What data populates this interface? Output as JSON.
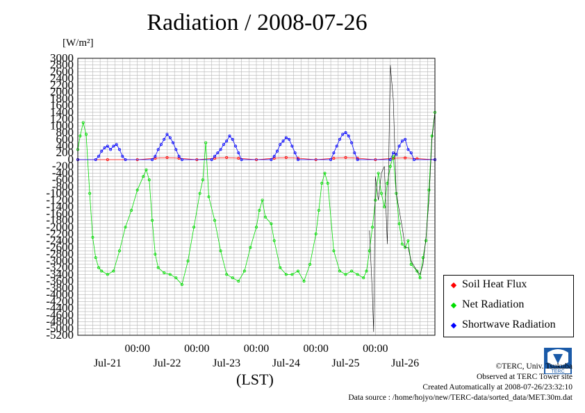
{
  "title": "Radiation / 2008-07-26",
  "ylabel_unit": "[W/m²]",
  "xlabel": "(LST)",
  "legend": {
    "items": [
      {
        "label": "Soil Heat Flux",
        "color": "#ff0000"
      },
      {
        "label": "Net Radiation",
        "color": "#00dd00"
      },
      {
        "label": "Shortwave Radiation",
        "color": "#0000ff"
      }
    ]
  },
  "credits": {
    "copyright": "©TERC, Univ. Tsukuba",
    "observed": "Observed at TERC Tower site",
    "created": "Created Automatically at 2008-07-26/23:32:10",
    "source": "Data source : /home/hojyo/new/TERC-data/sorted_data/MET.30m.dat"
  },
  "chart_data": {
    "type": "line",
    "x_unit": "days from 2008-07-20 18:00 LST",
    "xlim": [
      0,
      6
    ],
    "ylim": [
      -5200,
      3000
    ],
    "yticks": [
      3000,
      2800,
      2600,
      2400,
      2200,
      2000,
      1800,
      1600,
      1400,
      1200,
      1000,
      800,
      600,
      400,
      200,
      0,
      -200,
      -400,
      -600,
      -800,
      -1000,
      -1200,
      -1400,
      -1600,
      -1800,
      -2000,
      -2200,
      -2400,
      -2600,
      -2800,
      -3000,
      -3200,
      -3400,
      -3600,
      -3800,
      -4000,
      -4200,
      -4400,
      -4600,
      -4800,
      -5000,
      -5200
    ],
    "xticks": [
      {
        "x": 1.0,
        "time": "00:00",
        "date": "Jul-21"
      },
      {
        "x": 2.0,
        "time": "00:00",
        "date": "Jul-22"
      },
      {
        "x": 3.0,
        "time": "00:00",
        "date": "Jul-23"
      },
      {
        "x": 4.0,
        "time": "00:00",
        "date": "Jul-24"
      },
      {
        "x": 5.0,
        "time": "00:00",
        "date": "Jul-25"
      },
      {
        "x": 6.0,
        "time": "",
        "date": "Jul-26"
      }
    ],
    "grid": true,
    "series": [
      {
        "name": "Soil Heat Flux",
        "color": "#ff0000",
        "points": [
          [
            0,
            0
          ],
          [
            0.5,
            0
          ],
          [
            1.0,
            0
          ],
          [
            1.3,
            40
          ],
          [
            1.5,
            60
          ],
          [
            1.7,
            40
          ],
          [
            2.0,
            0
          ],
          [
            2.3,
            40
          ],
          [
            2.5,
            60
          ],
          [
            2.7,
            40
          ],
          [
            3.0,
            0
          ],
          [
            3.3,
            40
          ],
          [
            3.5,
            60
          ],
          [
            3.7,
            40
          ],
          [
            4.0,
            0
          ],
          [
            4.3,
            40
          ],
          [
            4.5,
            60
          ],
          [
            4.7,
            40
          ],
          [
            5.0,
            0
          ],
          [
            5.3,
            40
          ],
          [
            5.5,
            50
          ],
          [
            5.7,
            30
          ],
          [
            6.0,
            0
          ]
        ]
      },
      {
        "name": "Net Radiation",
        "color": "#00dd00",
        "points": [
          [
            0,
            300
          ],
          [
            0.04,
            700
          ],
          [
            0.09,
            1100
          ],
          [
            0.14,
            750
          ],
          [
            0.2,
            -1000
          ],
          [
            0.25,
            -2300
          ],
          [
            0.3,
            -2900
          ],
          [
            0.35,
            -3200
          ],
          [
            0.4,
            -3300
          ],
          [
            0.5,
            -3400
          ],
          [
            0.6,
            -3300
          ],
          [
            0.7,
            -2700
          ],
          [
            0.8,
            -2000
          ],
          [
            0.9,
            -1500
          ],
          [
            1.0,
            -900
          ],
          [
            1.1,
            -500
          ],
          [
            1.15,
            -300
          ],
          [
            1.2,
            -600
          ],
          [
            1.25,
            -1800
          ],
          [
            1.3,
            -2800
          ],
          [
            1.35,
            -3200
          ],
          [
            1.45,
            -3350
          ],
          [
            1.55,
            -3400
          ],
          [
            1.65,
            -3500
          ],
          [
            1.75,
            -3700
          ],
          [
            1.85,
            -3000
          ],
          [
            1.95,
            -2000
          ],
          [
            2.05,
            -1000
          ],
          [
            2.1,
            -600
          ],
          [
            2.15,
            500
          ],
          [
            2.2,
            -1100
          ],
          [
            2.3,
            -1800
          ],
          [
            2.4,
            -2700
          ],
          [
            2.5,
            -3400
          ],
          [
            2.6,
            -3500
          ],
          [
            2.7,
            -3600
          ],
          [
            2.8,
            -3300
          ],
          [
            2.9,
            -2600
          ],
          [
            3.0,
            -2000
          ],
          [
            3.05,
            -1500
          ],
          [
            3.1,
            -1200
          ],
          [
            3.15,
            -1700
          ],
          [
            3.25,
            -1900
          ],
          [
            3.3,
            -2400
          ],
          [
            3.4,
            -3200
          ],
          [
            3.5,
            -3400
          ],
          [
            3.6,
            -3400
          ],
          [
            3.7,
            -3300
          ],
          [
            3.8,
            -3600
          ],
          [
            3.9,
            -3100
          ],
          [
            4.0,
            -2200
          ],
          [
            4.05,
            -1500
          ],
          [
            4.1,
            -700
          ],
          [
            4.15,
            -400
          ],
          [
            4.2,
            -700
          ],
          [
            4.3,
            -2700
          ],
          [
            4.4,
            -3300
          ],
          [
            4.5,
            -3400
          ],
          [
            4.6,
            -3300
          ],
          [
            4.7,
            -3400
          ],
          [
            4.8,
            -3500
          ],
          [
            4.85,
            -3300
          ],
          [
            4.9,
            -2700
          ],
          [
            4.95,
            -2000
          ],
          [
            5.0,
            -1200
          ],
          [
            5.05,
            -400
          ],
          [
            5.1,
            -1000
          ],
          [
            5.15,
            -1400
          ],
          [
            5.2,
            -700
          ],
          [
            5.25,
            -200
          ],
          [
            5.3,
            100
          ],
          [
            5.35,
            -1000
          ],
          [
            5.4,
            -1900
          ],
          [
            5.45,
            -2500
          ],
          [
            5.5,
            -2600
          ],
          [
            5.55,
            -2400
          ],
          [
            5.6,
            -3100
          ],
          [
            5.7,
            -3300
          ],
          [
            5.75,
            -3500
          ],
          [
            5.8,
            -2900
          ],
          [
            5.85,
            -2400
          ],
          [
            5.9,
            -900
          ],
          [
            5.95,
            700
          ],
          [
            6.0,
            1400
          ]
        ]
      },
      {
        "name": "Shortwave Radiation",
        "color": "#0000ff",
        "points": [
          [
            0,
            0
          ],
          [
            0.3,
            0
          ],
          [
            0.35,
            100
          ],
          [
            0.4,
            250
          ],
          [
            0.45,
            350
          ],
          [
            0.5,
            400
          ],
          [
            0.55,
            300
          ],
          [
            0.6,
            400
          ],
          [
            0.65,
            450
          ],
          [
            0.7,
            300
          ],
          [
            0.75,
            100
          ],
          [
            0.8,
            0
          ],
          [
            1.25,
            0
          ],
          [
            1.3,
            100
          ],
          [
            1.35,
            300
          ],
          [
            1.4,
            450
          ],
          [
            1.45,
            600
          ],
          [
            1.5,
            750
          ],
          [
            1.55,
            650
          ],
          [
            1.6,
            500
          ],
          [
            1.65,
            300
          ],
          [
            1.7,
            100
          ],
          [
            1.75,
            0
          ],
          [
            2.25,
            0
          ],
          [
            2.3,
            100
          ],
          [
            2.35,
            200
          ],
          [
            2.4,
            300
          ],
          [
            2.45,
            450
          ],
          [
            2.5,
            550
          ],
          [
            2.55,
            700
          ],
          [
            2.6,
            600
          ],
          [
            2.65,
            400
          ],
          [
            2.7,
            200
          ],
          [
            2.75,
            0
          ],
          [
            3.25,
            0
          ],
          [
            3.3,
            100
          ],
          [
            3.35,
            250
          ],
          [
            3.4,
            450
          ],
          [
            3.45,
            550
          ],
          [
            3.5,
            650
          ],
          [
            3.55,
            600
          ],
          [
            3.6,
            400
          ],
          [
            3.65,
            200
          ],
          [
            3.7,
            0
          ],
          [
            4.25,
            0
          ],
          [
            4.3,
            200
          ],
          [
            4.35,
            400
          ],
          [
            4.4,
            600
          ],
          [
            4.45,
            750
          ],
          [
            4.5,
            800
          ],
          [
            4.55,
            700
          ],
          [
            4.6,
            500
          ],
          [
            4.65,
            200
          ],
          [
            4.7,
            0
          ],
          [
            5.25,
            0
          ],
          [
            5.3,
            200
          ],
          [
            5.35,
            150
          ],
          [
            5.4,
            400
          ],
          [
            5.45,
            550
          ],
          [
            5.5,
            600
          ],
          [
            5.55,
            300
          ],
          [
            5.6,
            200
          ],
          [
            5.65,
            0
          ],
          [
            6.0,
            0
          ]
        ]
      },
      {
        "name": "",
        "color": "#000000",
        "points": [
          [
            4.9,
            -2100
          ],
          [
            4.95,
            -4000
          ],
          [
            4.97,
            -5100
          ],
          [
            5.0,
            -500
          ],
          [
            5.05,
            -1200
          ],
          [
            5.1,
            -400
          ],
          [
            5.15,
            -200
          ],
          [
            5.2,
            -2500
          ],
          [
            5.25,
            2800
          ],
          [
            5.3,
            1800
          ],
          [
            5.35,
            -1000
          ],
          [
            5.4,
            -1500
          ],
          [
            5.45,
            -2000
          ],
          [
            5.5,
            -2600
          ],
          [
            5.55,
            -2600
          ],
          [
            5.6,
            -3000
          ],
          [
            5.7,
            -3300
          ],
          [
            5.75,
            -3400
          ],
          [
            5.8,
            -3100
          ],
          [
            5.85,
            -2300
          ],
          [
            5.9,
            -1200
          ],
          [
            5.95,
            600
          ],
          [
            6.0,
            1400
          ]
        ]
      }
    ]
  }
}
